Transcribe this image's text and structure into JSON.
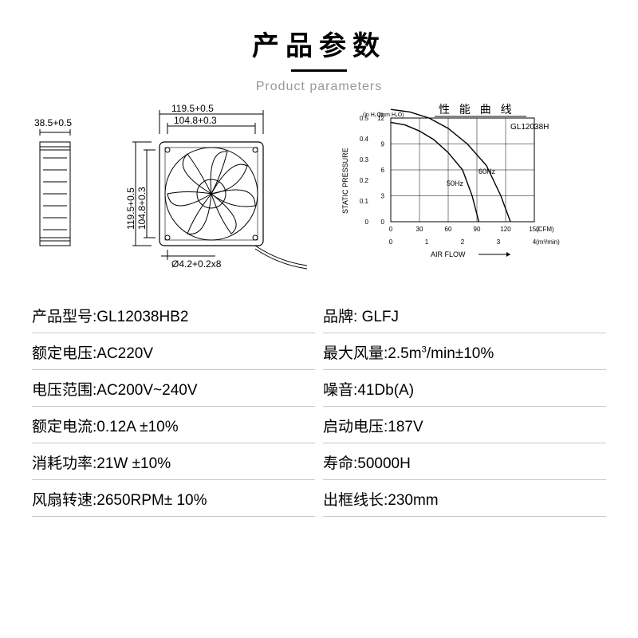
{
  "header": {
    "title_cn": "产品参数",
    "title_en": "Product parameters"
  },
  "dimensions": {
    "side_depth": "38.5+0.5",
    "width_outer": "119.5+0.5",
    "width_inner": "104.8+0.3",
    "height_outer": "119.5+0.5",
    "height_inner": "104.8+0.3",
    "hole": "Ø4.2+0.2x8",
    "stroke": "#000000",
    "font_size": 11
  },
  "chart": {
    "title": "性 能 曲 线",
    "model": "GL12038H",
    "y_label": "STATIC PRESSURE",
    "y_unit_left": "(in H₂O)",
    "y_unit_right": "(mm H₂O)",
    "x_label": "AIR FLOW",
    "x_unit_top": "(CFM)",
    "x_unit_bottom": "(m³/min)",
    "y_ticks_left": [
      "0",
      "0.1",
      "0.2",
      "0.3",
      "0.4",
      "0.5"
    ],
    "y_ticks_right": [
      "0",
      "3",
      "6",
      "9",
      "12"
    ],
    "x_ticks_top": [
      "0",
      "30",
      "60",
      "90",
      "120",
      "150"
    ],
    "x_ticks_bottom": [
      "0",
      "1",
      "2",
      "3",
      "4"
    ],
    "curve_50hz_label": "50Hz",
    "curve_60hz_label": "60Hz",
    "curve_50hz": [
      [
        0,
        115
      ],
      [
        15,
        112
      ],
      [
        30,
        105
      ],
      [
        45,
        95
      ],
      [
        60,
        80
      ],
      [
        75,
        60
      ],
      [
        85,
        30
      ],
      [
        92,
        0
      ]
    ],
    "curve_60hz": [
      [
        0,
        130
      ],
      [
        20,
        127
      ],
      [
        40,
        120
      ],
      [
        60,
        108
      ],
      [
        80,
        90
      ],
      [
        100,
        65
      ],
      [
        115,
        30
      ],
      [
        125,
        0
      ]
    ],
    "xlim": [
      0,
      150
    ],
    "ylim_right": [
      0,
      12
    ],
    "grid_color": "#000000",
    "curve_color": "#000000",
    "background": "#ffffff",
    "font_size": 8
  },
  "specs": [
    {
      "label": "产品型号:",
      "value": "GL12038HB2"
    },
    {
      "label": "品牌: ",
      "value": "GLFJ"
    },
    {
      "label": "额定电压:",
      "value": "AC220V"
    },
    {
      "label": "最大风量:",
      "value": "2.5m³/min±10%"
    },
    {
      "label": "电压范围:",
      "value": "AC200V~240V"
    },
    {
      "label": "噪音:",
      "value": "41Db(A)"
    },
    {
      "label": "额定电流:",
      "value": "0.12A ±10%"
    },
    {
      "label": "启动电压:",
      "value": "187V"
    },
    {
      "label": "消耗功率:",
      "value": "21W ±10%"
    },
    {
      "label": "寿命:",
      "value": "50000H"
    },
    {
      "label": "风扇转速:",
      "value": "2650RPM± 10%"
    },
    {
      "label": "出框线长:",
      "value": "230mm"
    }
  ]
}
